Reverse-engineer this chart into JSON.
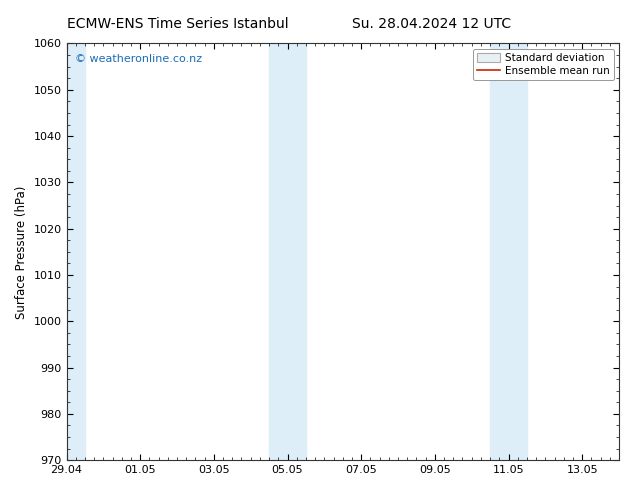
{
  "title_left": "ECMW-ENS Time Series Istanbul",
  "title_right": "Su. 28.04.2024 12 UTC",
  "ylabel": "Surface Pressure (hPa)",
  "ylim": [
    970,
    1060
  ],
  "yticks": [
    970,
    980,
    990,
    1000,
    1010,
    1020,
    1030,
    1040,
    1050,
    1060
  ],
  "x_min": 0.0,
  "x_max": 15.0,
  "xtick_labels": [
    "29.04",
    "01.05",
    "03.05",
    "05.05",
    "07.05",
    "09.05",
    "11.05",
    "13.05"
  ],
  "xtick_positions": [
    0.0,
    2.0,
    4.0,
    6.0,
    8.0,
    10.0,
    12.0,
    14.0
  ],
  "shaded_bands": [
    {
      "x_start": 0.0,
      "x_end": 0.5
    },
    {
      "x_start": 5.5,
      "x_end": 6.0
    },
    {
      "x_start": 6.0,
      "x_end": 6.5
    },
    {
      "x_start": 11.5,
      "x_end": 12.0
    },
    {
      "x_start": 12.0,
      "x_end": 12.5
    }
  ],
  "shaded_color": "#ddeef8",
  "watermark_text": "© weatheronline.co.nz",
  "watermark_color": "#1a6db5",
  "legend_std_label": "Standard deviation",
  "legend_mean_label": "Ensemble mean run",
  "legend_std_facecolor": "#e8f0f4",
  "legend_std_edgecolor": "#aaaaaa",
  "legend_mean_color": "#cc2200",
  "background_color": "#ffffff",
  "title_fontsize": 10,
  "tick_fontsize": 8,
  "ylabel_fontsize": 8.5,
  "watermark_fontsize": 8,
  "legend_fontsize": 7.5
}
